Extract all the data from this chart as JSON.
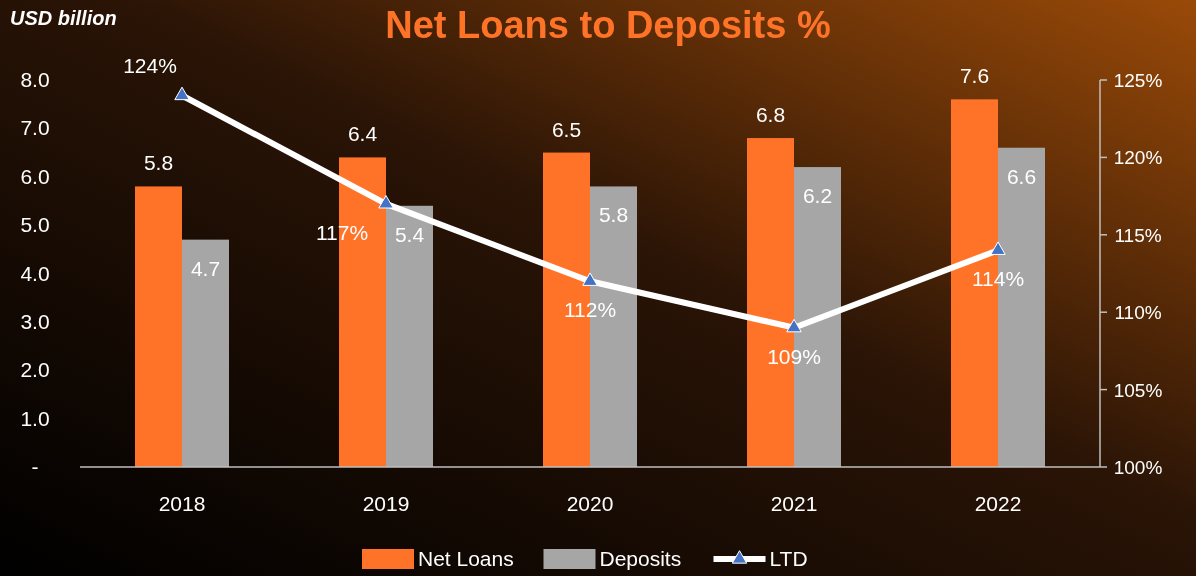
{
  "chart_data": {
    "type": "bar",
    "title": "Net Loans to Deposits %",
    "ylabel": "USD billion",
    "categories": [
      "2018",
      "2019",
      "2020",
      "2021",
      "2022"
    ],
    "series": [
      {
        "name": "Net Loans",
        "color": "#ff7328",
        "values": [
          5.8,
          6.4,
          6.5,
          6.8,
          7.6
        ]
      },
      {
        "name": "Deposits",
        "color": "#a6a6a6",
        "values": [
          4.7,
          5.4,
          5.8,
          6.2,
          6.6
        ]
      },
      {
        "name": "LTD",
        "type": "line",
        "axis": "y2",
        "color": "#ffffff",
        "marker": "triangle",
        "values": [
          124,
          117,
          112,
          109,
          114
        ],
        "value_labels": [
          "124%",
          "117%",
          "112%",
          "109%",
          "114%"
        ]
      }
    ],
    "data_labels": true,
    "ylim": [
      0,
      8
    ],
    "yticks": [
      {
        "value": 0,
        "label": "-"
      },
      {
        "value": 1,
        "label": "1.0"
      },
      {
        "value": 2,
        "label": "2.0"
      },
      {
        "value": 3,
        "label": "3.0"
      },
      {
        "value": 4,
        "label": "4.0"
      },
      {
        "value": 5,
        "label": "5.0"
      },
      {
        "value": 6,
        "label": "6.0"
      },
      {
        "value": 7,
        "label": "7.0"
      },
      {
        "value": 8,
        "label": "8.0"
      }
    ],
    "y2lim": [
      100,
      125
    ],
    "y2ticks": [
      {
        "value": 100,
        "label": "100%"
      },
      {
        "value": 105,
        "label": "105%"
      },
      {
        "value": 110,
        "label": "110%"
      },
      {
        "value": 115,
        "label": "115%"
      },
      {
        "value": 120,
        "label": "120%"
      },
      {
        "value": 125,
        "label": "125%"
      }
    ],
    "legend": "bottom",
    "grid": false
  }
}
